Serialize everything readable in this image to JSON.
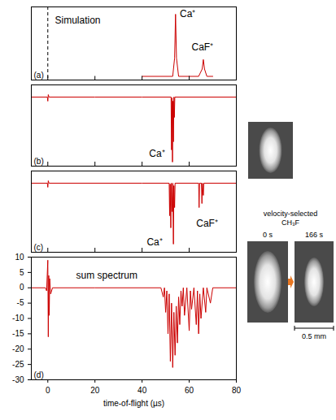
{
  "chart_data": [
    {
      "type": "line",
      "label": "(a)",
      "color": "#cc0000",
      "tick_labels": false,
      "xlim": [
        -7,
        80
      ],
      "xticks": [
        0,
        20,
        40,
        60,
        80
      ],
      "ylim": [
        0,
        1
      ],
      "reference_line": {
        "x": 0,
        "line_style": "dashed"
      },
      "x": [
        40,
        53,
        53.8,
        54.2,
        54.6,
        55.5,
        64,
        65.5,
        66,
        66.5,
        67.5,
        70
      ],
      "values": [
        0.05,
        0.05,
        0.3,
        0.9,
        0.3,
        0.05,
        0.05,
        0.15,
        0.28,
        0.15,
        0.05,
        0.05
      ],
      "annotations": [
        {
          "text": "Simulation",
          "x": 3,
          "y": 0.82
        },
        {
          "text": "Ca⁺",
          "x": 56,
          "y": 0.9
        },
        {
          "text": "CaF⁺",
          "x": 61,
          "y": 0.45
        }
      ]
    },
    {
      "type": "line",
      "label": "(b)",
      "color": "#cc0000",
      "tick_labels": false,
      "xlim": [
        -7,
        80
      ],
      "xticks": [
        0,
        20,
        40,
        60,
        80
      ],
      "ylim": [
        0,
        1
      ],
      "x": [
        -7,
        -0.2,
        0,
        0.2,
        0.5,
        20,
        40,
        52.3,
        52.5,
        52.7,
        52.9,
        53.1,
        53.3,
        53.5,
        53.7,
        53.9,
        80
      ],
      "values": [
        0.85,
        0.85,
        0.8,
        0.88,
        0.85,
        0.85,
        0.85,
        0.85,
        0.2,
        0.84,
        0.05,
        0.8,
        0.3,
        0.85,
        0.6,
        0.85,
        0.85
      ],
      "annotations": [
        {
          "text": "Ca⁺",
          "x": 43,
          "y": 0.15
        }
      ]
    },
    {
      "type": "line",
      "label": "(c)",
      "color": "#cc0000",
      "tick_labels": false,
      "xlim": [
        -7,
        80
      ],
      "xticks": [
        0,
        20,
        40,
        60,
        80
      ],
      "ylim": [
        0,
        1
      ],
      "x": [
        -7,
        -0.2,
        0,
        0.2,
        0.5,
        40,
        51.5,
        51.7,
        51.9,
        52.2,
        52.4,
        52.8,
        53.0,
        53.3,
        53.5,
        53.8,
        54.0,
        64.0,
        64.2,
        64.4,
        65.2,
        65.4,
        65.6,
        66.0,
        66.2,
        80
      ],
      "values": [
        0.85,
        0.85,
        0.8,
        0.88,
        0.85,
        0.85,
        0.85,
        0.45,
        0.84,
        0.3,
        0.85,
        0.5,
        0.85,
        0.1,
        0.82,
        0.55,
        0.85,
        0.85,
        0.55,
        0.85,
        0.85,
        0.6,
        0.85,
        0.7,
        0.85,
        0.85
      ],
      "annotations": [
        {
          "text": "Ca⁺",
          "x": 42,
          "y": 0.12
        },
        {
          "text": "CaF⁺",
          "x": 63,
          "y": 0.35
        }
      ]
    },
    {
      "type": "line",
      "label": "(d)",
      "color": "#cc0000",
      "xlabel": "time-of-flight (µs)",
      "xlim": [
        -7,
        80
      ],
      "xticks": [
        0,
        20,
        40,
        60,
        80
      ],
      "ylim": [
        -30,
        10
      ],
      "yticks": [
        -30,
        -25,
        -20,
        -15,
        -10,
        -5,
        0,
        5,
        10
      ],
      "x": [
        -7,
        -1,
        -0.5,
        0,
        0.2,
        0.4,
        0.6,
        0.8,
        1.2,
        2,
        20,
        48,
        49,
        49.5,
        50,
        50.5,
        51,
        51.5,
        52,
        52.5,
        53,
        53.5,
        54,
        54.5,
        55,
        55.5,
        56,
        56.5,
        57,
        57.5,
        58,
        59,
        60,
        60.5,
        61,
        62,
        63,
        63.5,
        64,
        64.5,
        65,
        66,
        67,
        67.5,
        69,
        70,
        80
      ],
      "values": [
        0,
        0,
        -1,
        9,
        -16,
        4,
        -9,
        3,
        -2,
        0,
        0,
        0,
        -3,
        0,
        -8,
        -1,
        -15,
        -2,
        -24,
        -5,
        -26,
        -8,
        -22,
        -6,
        -18,
        -3,
        -12,
        -1,
        -6,
        0,
        -9,
        0,
        -14,
        -1,
        -7,
        0,
        -12,
        -1,
        -15,
        -2,
        -10,
        0,
        -8,
        0,
        -5,
        0,
        0
      ],
      "annotations": [
        {
          "text": "sum spectrum",
          "x": 12,
          "y": 4
        }
      ]
    }
  ],
  "side_panel": {
    "heading": "velocity-selected CH₃F",
    "frames": [
      "0 s",
      "166 s"
    ],
    "scale_bar": "0.5 mm"
  }
}
